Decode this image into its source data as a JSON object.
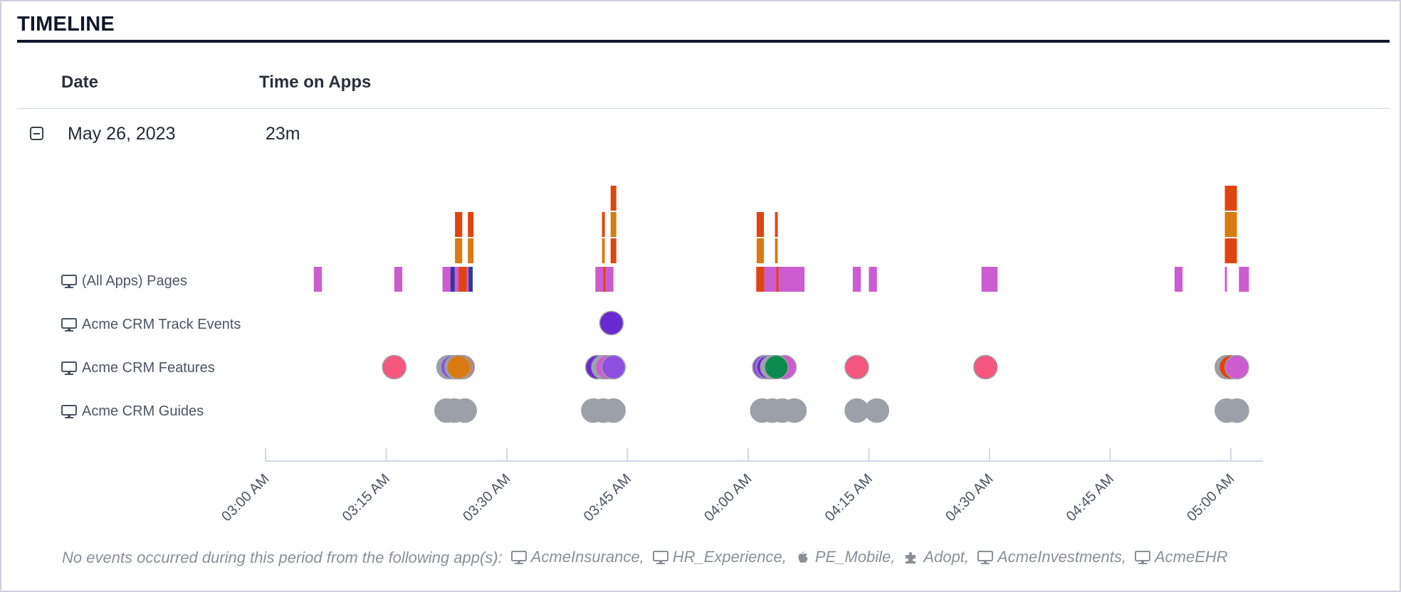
{
  "header": {
    "title": "TIMELINE"
  },
  "table": {
    "columns": {
      "date": "Date",
      "time": "Time on Apps"
    },
    "row": {
      "date": "May 26, 2023",
      "time_on_apps": "23m"
    }
  },
  "lanes": [
    {
      "id": "pages",
      "label": "(All Apps) Pages",
      "icon": "monitor-icon"
    },
    {
      "id": "track",
      "label": "Acme CRM Track Events",
      "icon": "monitor-icon"
    },
    {
      "id": "features",
      "label": "Acme CRM Features",
      "icon": "monitor-icon"
    },
    {
      "id": "guides",
      "label": "Acme CRM Guides",
      "icon": "monitor-icon"
    }
  ],
  "axis": {
    "start": "03:00 AM",
    "end": "05:05 AM",
    "ticks": [
      "03:00 AM",
      "03:15 AM",
      "03:30 AM",
      "03:45 AM",
      "04:00 AM",
      "04:15 AM",
      "04:30 AM",
      "04:45 AM",
      "05:00 AM"
    ]
  },
  "colors": {
    "magenta": "#cc5ccf",
    "orange_red": "#e0450f",
    "orange": "#d97b12",
    "pink": "#f5577e",
    "gray": "#9ca0a8",
    "purple": "#6a2ad1",
    "violet": "#8f4fe0",
    "green": "#0b8a4e",
    "navy": "#2a3aa0"
  },
  "events": {
    "pages": [
      {
        "start": "03:06:00",
        "end": "03:07:00",
        "color": "magenta"
      },
      {
        "start": "03:16:00",
        "end": "03:17:00",
        "color": "magenta"
      },
      {
        "start": "03:22:00",
        "end": "03:25:45",
        "color": "magenta"
      },
      {
        "start": "03:23:00",
        "end": "03:23:30",
        "color": "navy"
      },
      {
        "start": "03:24:00",
        "end": "03:25:00",
        "color": "orange_red"
      },
      {
        "start": "03:25:15",
        "end": "03:25:45",
        "color": "navy"
      },
      {
        "start": "03:41:00",
        "end": "03:43:15",
        "color": "magenta"
      },
      {
        "start": "03:42:00",
        "end": "03:42:15",
        "color": "orange_red"
      },
      {
        "start": "04:01:00",
        "end": "04:02:00",
        "color": "orange_red"
      },
      {
        "start": "04:02:00",
        "end": "04:07:00",
        "color": "magenta"
      },
      {
        "start": "04:03:30",
        "end": "04:03:45",
        "color": "orange_red"
      },
      {
        "start": "04:13:00",
        "end": "04:14:00",
        "color": "magenta"
      },
      {
        "start": "04:15:00",
        "end": "04:16:00",
        "color": "magenta"
      },
      {
        "start": "04:29:00",
        "end": "04:31:00",
        "color": "magenta"
      },
      {
        "start": "04:53:00",
        "end": "04:54:00",
        "color": "magenta"
      },
      {
        "start": "04:59:15",
        "end": "04:59:30",
        "color": "magenta"
      },
      {
        "start": "05:01:00",
        "end": "05:02:15",
        "color": "magenta"
      }
    ],
    "stacks": [
      {
        "at": "03:24:00",
        "width_min": 0.9,
        "segments": [
          "orange",
          "orange_red"
        ]
      },
      {
        "at": "03:25:30",
        "width_min": 0.7,
        "segments": [
          "orange",
          "orange_red"
        ]
      },
      {
        "at": "03:42:00",
        "width_min": 0.35,
        "segments": [
          "orange",
          "orange_red"
        ]
      },
      {
        "at": "03:43:15",
        "width_min": 0.7,
        "segments": [
          "orange_red",
          "orange",
          "orange_red"
        ]
      },
      {
        "at": "04:01:30",
        "width_min": 0.9,
        "segments": [
          "orange",
          "orange_red"
        ]
      },
      {
        "at": "04:03:30",
        "width_min": 0.35,
        "segments": [
          "orange",
          "orange_red"
        ]
      },
      {
        "at": "05:00:00",
        "width_min": 1.5,
        "segments": [
          "orange_red",
          "orange",
          "orange_red"
        ]
      }
    ],
    "track": [
      {
        "at": "03:43:00",
        "color": "purple"
      }
    ],
    "features": [
      {
        "at": "03:16:00",
        "color": "pink"
      },
      {
        "at": "03:22:45",
        "color": "gray"
      },
      {
        "at": "03:23:15",
        "color": "violet"
      },
      {
        "at": "03:24:30",
        "color": "pink"
      },
      {
        "at": "03:23:45",
        "color": "gray"
      },
      {
        "at": "03:24:15",
        "color": "orange"
      },
      {
        "at": "03:24:00",
        "color": "orange"
      },
      {
        "at": "03:41:15",
        "color": "purple"
      },
      {
        "at": "03:42:00",
        "color": "gray"
      },
      {
        "at": "03:42:30",
        "color": "magenta"
      },
      {
        "at": "03:43:15",
        "color": "violet"
      },
      {
        "at": "04:02:00",
        "color": "violet"
      },
      {
        "at": "04:02:30",
        "color": "purple"
      },
      {
        "at": "04:03:00",
        "color": "gray"
      },
      {
        "at": "04:04:30",
        "color": "magenta"
      },
      {
        "at": "04:03:30",
        "color": "green"
      },
      {
        "at": "04:13:30",
        "color": "pink"
      },
      {
        "at": "04:29:30",
        "color": "pink"
      },
      {
        "at": "04:59:30",
        "color": "gray"
      },
      {
        "at": "05:00:00",
        "color": "orange_red"
      },
      {
        "at": "05:00:45",
        "color": "magenta"
      }
    ],
    "guides": [
      {
        "at": "03:22:30",
        "color": "gray"
      },
      {
        "at": "03:23:30",
        "color": "gray"
      },
      {
        "at": "03:24:45",
        "color": "gray"
      },
      {
        "at": "03:40:45",
        "color": "gray"
      },
      {
        "at": "03:42:00",
        "color": "gray"
      },
      {
        "at": "03:43:15",
        "color": "gray"
      },
      {
        "at": "04:01:45",
        "color": "gray"
      },
      {
        "at": "04:03:00",
        "color": "gray"
      },
      {
        "at": "04:04:15",
        "color": "gray"
      },
      {
        "at": "04:05:45",
        "color": "gray"
      },
      {
        "at": "04:13:30",
        "color": "gray"
      },
      {
        "at": "04:16:00",
        "color": "gray"
      },
      {
        "at": "04:59:30",
        "color": "gray"
      },
      {
        "at": "05:00:45",
        "color": "gray"
      }
    ]
  },
  "footer": {
    "prefix": "No events occurred during this period from the following app(s):",
    "apps": [
      {
        "name": "AcmeInsurance,",
        "icon": "monitor-icon"
      },
      {
        "name": "HR_Experience,",
        "icon": "monitor-icon"
      },
      {
        "name": "PE_Mobile,",
        "icon": "apple-icon"
      },
      {
        "name": "Adopt,",
        "icon": "puzzle-icon"
      },
      {
        "name": "AcmeInvestments,",
        "icon": "monitor-icon"
      },
      {
        "name": "AcmeEHR",
        "icon": "monitor-icon"
      }
    ]
  }
}
